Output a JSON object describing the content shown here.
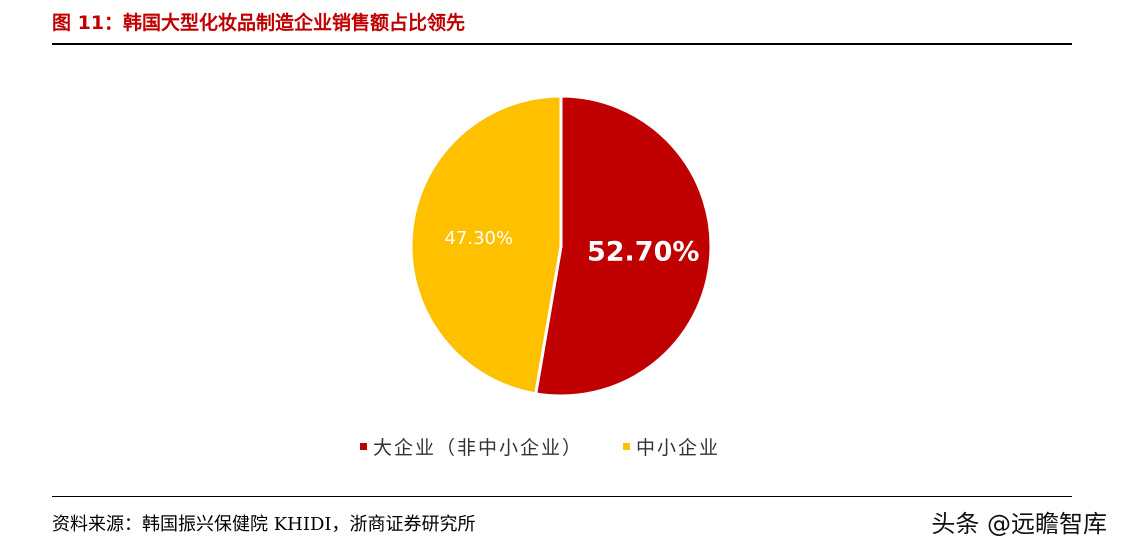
{
  "figure": {
    "title": "图 11：韩国大型化妆品制造企业销售额占比领先"
  },
  "chart_data": {
    "type": "pie",
    "categories": [
      "大企业（非中小企业）",
      "中小企业"
    ],
    "values": [
      52.7,
      47.3
    ],
    "data_labels": [
      "52.70%",
      "47.30%"
    ],
    "colors": [
      "#c00000",
      "#ffc000"
    ],
    "legend_position": "bottom",
    "start_angle": "12 o'clock, clockwise"
  },
  "footer": {
    "source": "资料来源：韩国振兴保健院 KHIDI，浙商证券研究所",
    "watermark": "头条 @远瞻智库"
  }
}
